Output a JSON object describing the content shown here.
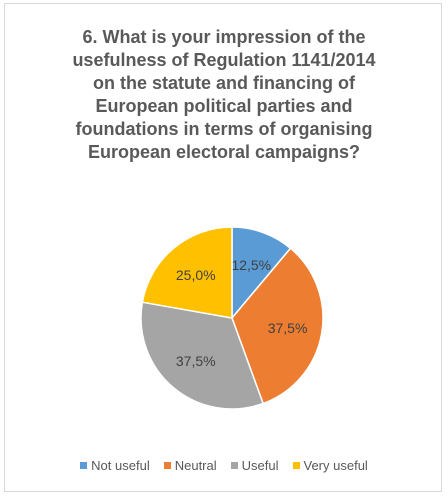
{
  "title_lines": [
    "6. What is your impression of the",
    "usefulness of Regulation 1141/2014",
    "on the statute and financing of",
    "European political parties and",
    "foundations in terms of organising",
    "European electoral campaigns?"
  ],
  "chart_data": {
    "type": "pie",
    "title": "6. What is your impression of the usefulness of Regulation 1141/2014 on the statute and financing of European political parties and foundations in terms of organising European electoral campaigns?",
    "categories": [
      "Not useful",
      "Neutral",
      "Useful",
      "Very useful"
    ],
    "values": [
      12.5,
      37.5,
      37.5,
      25.0
    ],
    "data_labels": [
      "12,5%",
      "37,5%",
      "37,5%",
      "25,0%"
    ],
    "colors": [
      "#5b9bd5",
      "#ed7d31",
      "#a5a5a5",
      "#ffc000"
    ],
    "start_angle": "12 o'clock, clockwise",
    "legend_position": "bottom"
  }
}
